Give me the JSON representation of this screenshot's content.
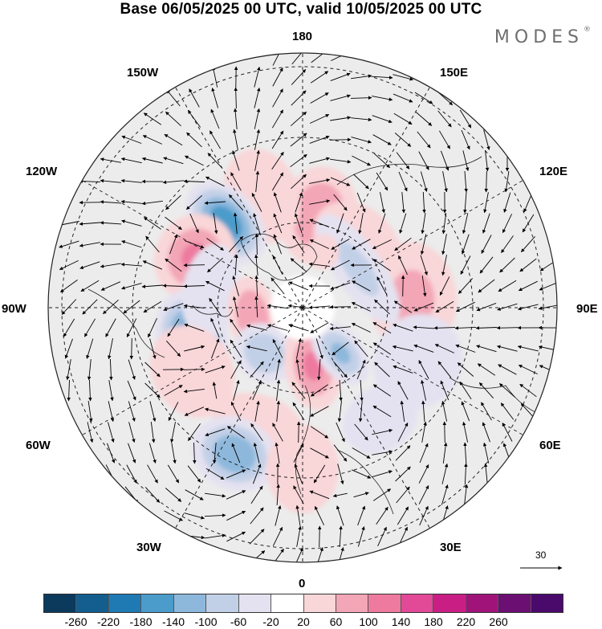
{
  "title": "Base 06/05/2025 00 UTC, valid 10/05/2025 00 UTC",
  "brand": "MODES",
  "brand_mark": "®",
  "longitude_labels": {
    "top": "180",
    "upper_left": "150W",
    "upper_right": "150E",
    "left_upper": "120W",
    "right_upper": "120E",
    "left": "90W",
    "right": "90E",
    "left_lower": "60W",
    "right_lower": "60E",
    "lower_left": "30W",
    "lower_right": "30E",
    "bottom": "0"
  },
  "wind_scale": {
    "value": "30"
  },
  "colorbar": {
    "colors": [
      "#0b3a5c",
      "#135e8f",
      "#1f79b3",
      "#4b9bcb",
      "#8db8dc",
      "#c2d0e7",
      "#e4e2f0",
      "#ffffff",
      "#f9d6d8",
      "#f3a6b6",
      "#ee7aa0",
      "#e24a97",
      "#c91f85",
      "#a0147a",
      "#6b0f73",
      "#4a0a6b"
    ],
    "tick_labels": [
      "-260",
      "-220",
      "-180",
      "-140",
      "-100",
      "-60",
      "-20",
      "20",
      "60",
      "100",
      "140",
      "180",
      "220",
      "260"
    ]
  },
  "anomaly_centers": [
    {
      "lon": 170,
      "colat": 22,
      "value": 90,
      "rx": 48,
      "ry": 62
    },
    {
      "lon": -160,
      "colat": 28,
      "value": 60,
      "rx": 46,
      "ry": 60
    },
    {
      "lon": -138,
      "colat": 27,
      "value": -160,
      "rx": 40,
      "ry": 60
    },
    {
      "lon": -115,
      "colat": 28,
      "value": 110,
      "rx": 55,
      "ry": 50
    },
    {
      "lon": -75,
      "colat": 27,
      "value": -170,
      "rx": 60,
      "ry": 45
    },
    {
      "lon": -100,
      "colat": 22,
      "value": -40,
      "rx": 60,
      "ry": 35
    },
    {
      "lon": -80,
      "colat": 12,
      "value": 90,
      "rx": 50,
      "ry": 30
    },
    {
      "lon": -40,
      "colat": 14,
      "value": -80,
      "rx": 40,
      "ry": 35
    },
    {
      "lon": 10,
      "colat": 14,
      "value": 110,
      "rx": 35,
      "ry": 55
    },
    {
      "lon": 40,
      "colat": 14,
      "value": -110,
      "rx": 28,
      "ry": 45
    },
    {
      "lon": -20,
      "colat": 30,
      "value": 50,
      "rx": 60,
      "ry": 40
    },
    {
      "lon": -60,
      "colat": 30,
      "value": 60,
      "rx": 60,
      "ry": 50
    },
    {
      "lon": -25,
      "colat": 38,
      "value": -120,
      "rx": 55,
      "ry": 45
    },
    {
      "lon": 0,
      "colat": 38,
      "value": 40,
      "rx": 45,
      "ry": 55
    },
    {
      "lon": 95,
      "colat": 26,
      "value": 70,
      "rx": 70,
      "ry": 55
    },
    {
      "lon": 140,
      "colat": 20,
      "value": 30,
      "rx": 60,
      "ry": 45
    },
    {
      "lon": 125,
      "colat": 16,
      "value": -60,
      "rx": 80,
      "ry": 30
    },
    {
      "lon": 160,
      "colat": 14,
      "value": 50,
      "rx": 20,
      "ry": 22
    },
    {
      "lon": 65,
      "colat": 30,
      "value": -30,
      "rx": 60,
      "ry": 55
    },
    {
      "lon": 35,
      "colat": 32,
      "value": -30,
      "rx": 50,
      "ry": 40
    }
  ]
}
